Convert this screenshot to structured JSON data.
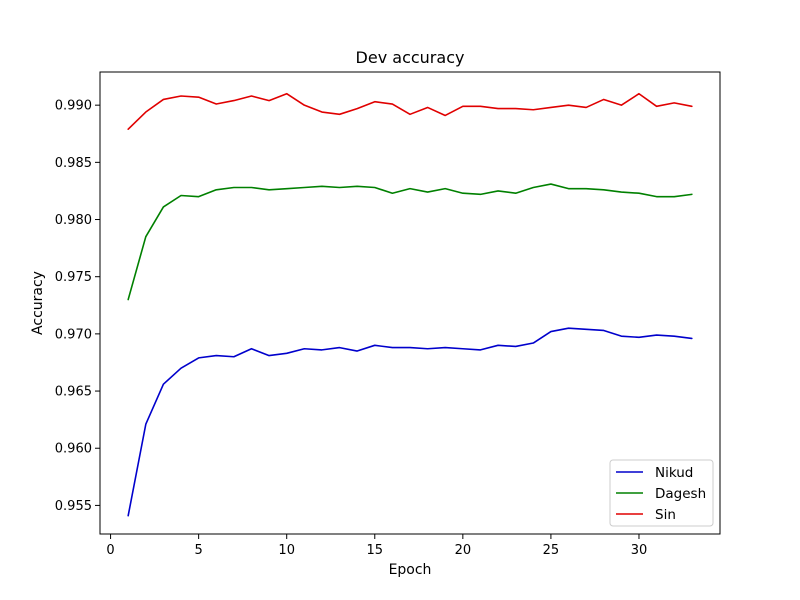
{
  "chart_data": {
    "type": "line",
    "title": "Dev accuracy",
    "xlabel": "Epoch",
    "ylabel": "Accuracy",
    "xlim": [
      -0.6,
      34.6
    ],
    "ylim": [
      0.9525,
      0.9929
    ],
    "xticks": [
      0,
      5,
      10,
      15,
      20,
      25,
      30
    ],
    "xtick_labels": [
      "0",
      "5",
      "10",
      "15",
      "20",
      "25",
      "30"
    ],
    "yticks": [
      0.955,
      0.96,
      0.965,
      0.97,
      0.975,
      0.98,
      0.985,
      0.99
    ],
    "ytick_labels": [
      "0.955",
      "0.960",
      "0.965",
      "0.970",
      "0.975",
      "0.980",
      "0.985",
      "0.990"
    ],
    "grid": false,
    "legend_position": "lower-right",
    "x": [
      1,
      2,
      3,
      4,
      5,
      6,
      7,
      8,
      9,
      10,
      11,
      12,
      13,
      14,
      15,
      16,
      17,
      18,
      19,
      20,
      21,
      22,
      23,
      24,
      25,
      26,
      27,
      28,
      29,
      30,
      31,
      32,
      33
    ],
    "series": [
      {
        "name": "Nikud",
        "color": "#0000cc",
        "values": [
          0.9541,
          0.9621,
          0.9656,
          0.967,
          0.9679,
          0.9681,
          0.968,
          0.9687,
          0.9681,
          0.9683,
          0.9687,
          0.9686,
          0.9688,
          0.9685,
          0.969,
          0.9688,
          0.9688,
          0.9687,
          0.9688,
          0.9687,
          0.9686,
          0.969,
          0.9689,
          0.9692,
          0.9702,
          0.9705,
          0.9704,
          0.9703,
          0.9698,
          0.9697,
          0.9699,
          0.9698,
          0.9696
        ]
      },
      {
        "name": "Dagesh",
        "color": "#008000",
        "values": [
          0.973,
          0.9785,
          0.9811,
          0.9821,
          0.982,
          0.9826,
          0.9828,
          0.9828,
          0.9826,
          0.9827,
          0.9828,
          0.9829,
          0.9828,
          0.9829,
          0.9828,
          0.9823,
          0.9827,
          0.9824,
          0.9827,
          0.9823,
          0.9822,
          0.9825,
          0.9823,
          0.9828,
          0.9831,
          0.9827,
          0.9827,
          0.9826,
          0.9824,
          0.9823,
          0.982,
          0.982,
          0.9822
        ]
      },
      {
        "name": "Sin",
        "color": "#e00000",
        "values": [
          0.9879,
          0.9894,
          0.9905,
          0.9908,
          0.9907,
          0.9901,
          0.9904,
          0.9908,
          0.9904,
          0.991,
          0.99,
          0.9894,
          0.9892,
          0.9897,
          0.9903,
          0.9901,
          0.9892,
          0.9898,
          0.9891,
          0.9899,
          0.9899,
          0.9897,
          0.9897,
          0.9896,
          0.9898,
          0.99,
          0.9898,
          0.9905,
          0.99,
          0.991,
          0.9899,
          0.9902,
          0.9899
        ]
      }
    ]
  }
}
